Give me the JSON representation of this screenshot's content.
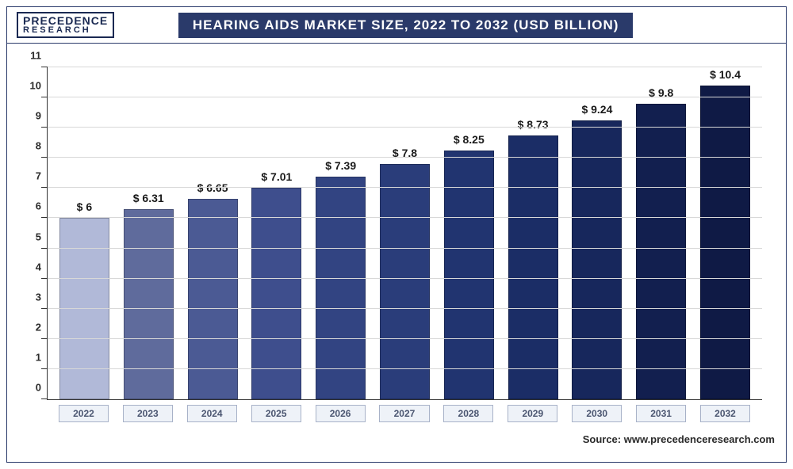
{
  "logo": {
    "main": "PRECEDENCE",
    "sub": "RESEARCH"
  },
  "title": "HEARING AIDS MARKET SIZE, 2022 TO 2032 (USD BILLION)",
  "source_label": "Source: www.precedenceresearch.com",
  "chart": {
    "type": "bar",
    "ylim": [
      0,
      11
    ],
    "ytick_step": 1,
    "background_color": "#ffffff",
    "grid_color": "#d8d8d8",
    "label_fontsize": 13,
    "value_fontsize": 14,
    "bar_width_pct": 78,
    "categories": [
      "2022",
      "2023",
      "2024",
      "2025",
      "2026",
      "2027",
      "2028",
      "2029",
      "2030",
      "2031",
      "2032"
    ],
    "values": [
      6,
      6.31,
      6.65,
      7.01,
      7.39,
      7.8,
      8.25,
      8.73,
      9.24,
      9.8,
      10.4
    ],
    "value_labels": [
      "$ 6",
      "$ 6.31",
      "$ 6.65",
      "$ 7.01",
      "$ 7.39",
      "$ 7.8",
      "$ 8.25",
      "$ 8.73",
      "$ 9.24",
      "$ 9.8",
      "$ 10.4"
    ],
    "bar_colors": [
      "#b1b9d8",
      "#5f6b9c",
      "#4b5a94",
      "#3e4e8d",
      "#324482",
      "#2a3d7a",
      "#213470",
      "#1b2d66",
      "#17275c",
      "#121f4f",
      "#0f1a45"
    ],
    "x_label_bg": "#eef2f8",
    "x_label_border": "#a8b2c8"
  }
}
